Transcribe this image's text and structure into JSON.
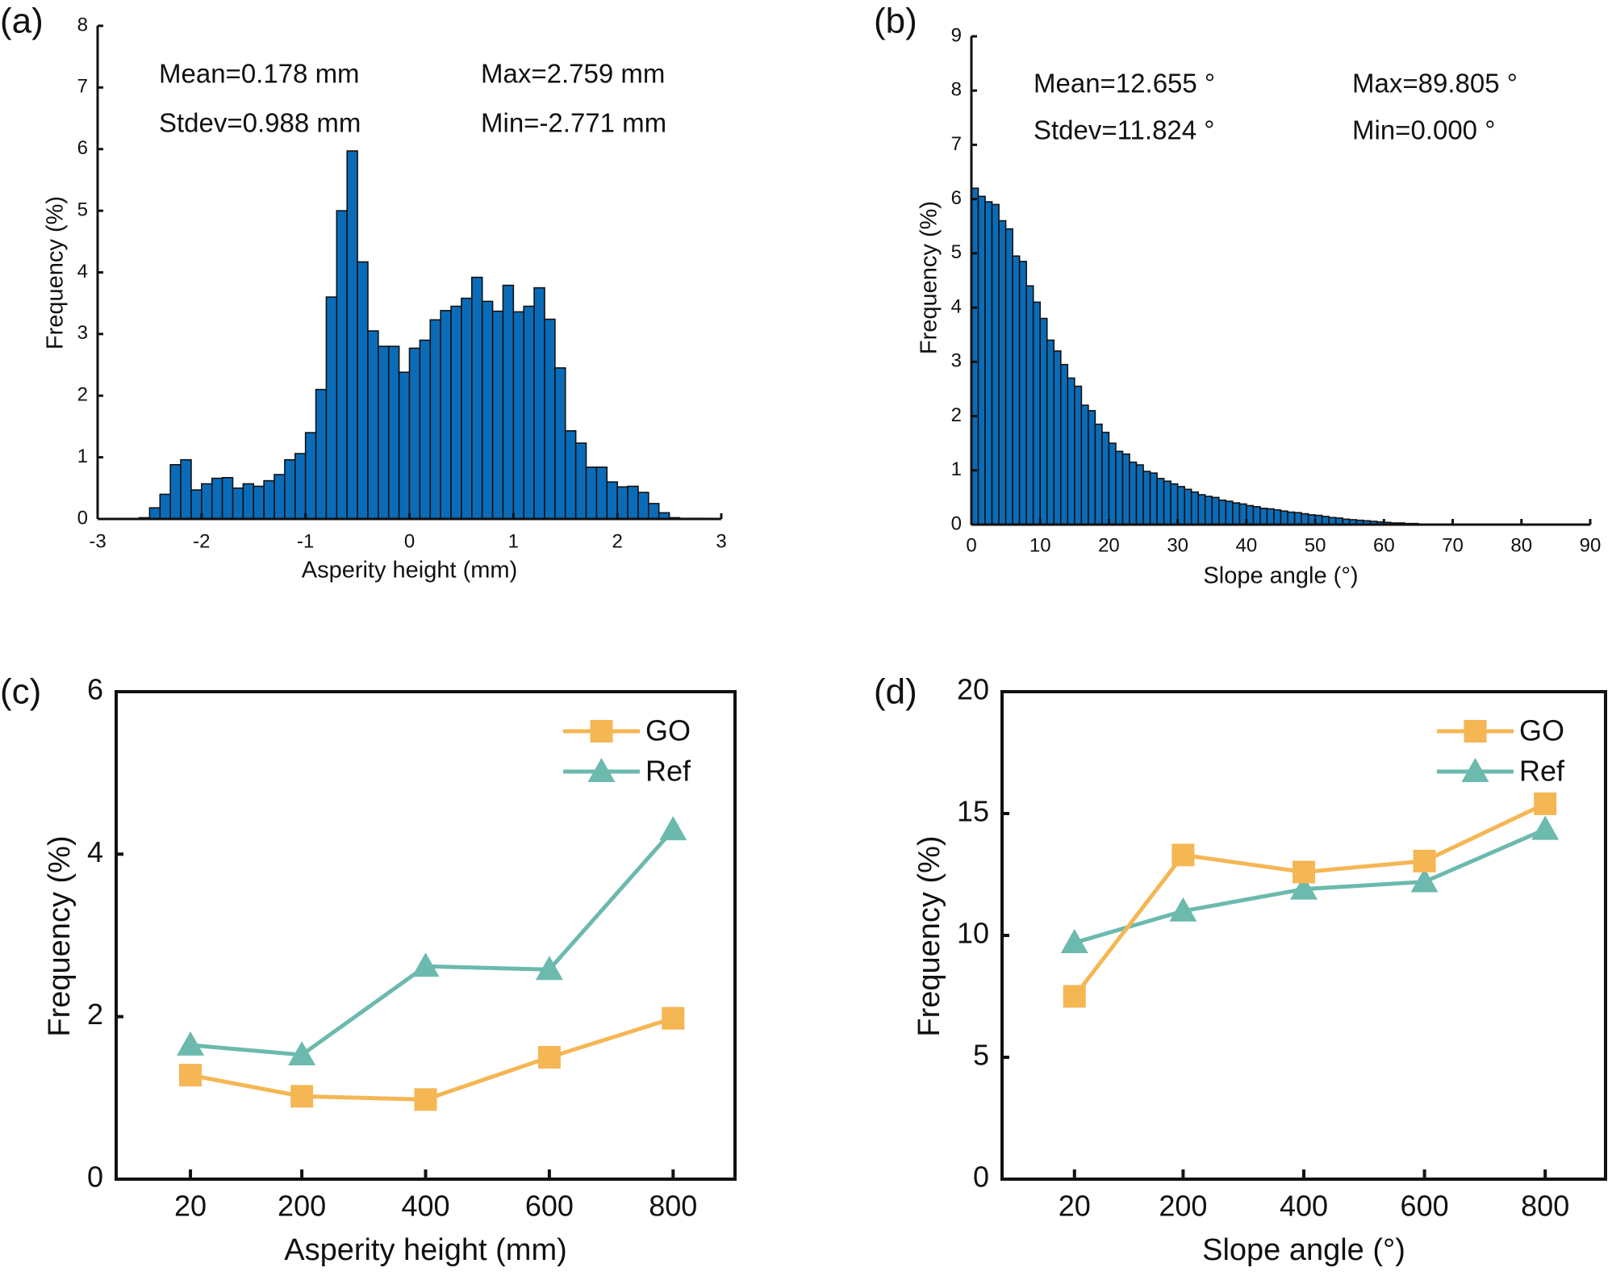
{
  "colors": {
    "bar": "#0a6cb8",
    "go": "#f5b654",
    "ref": "#6cb9ae",
    "axis": "#111111"
  },
  "chart_data": [
    {
      "panel": "(a)",
      "type": "bar",
      "subtype": "histogram",
      "xlabel": "Asperity height (mm)",
      "ylabel": "Frequency (%)",
      "xlim": [
        -3,
        3
      ],
      "ylim": [
        0,
        8
      ],
      "xticks": [
        "-3",
        "-2",
        "-1",
        "0",
        "1",
        "2",
        "3"
      ],
      "yticks": [
        "0",
        "1",
        "2",
        "3",
        "4",
        "5",
        "6",
        "7",
        "8"
      ],
      "bin_start_center": -2.55,
      "bin_width": 0.1,
      "values": [
        0.02,
        0.18,
        0.4,
        0.88,
        0.96,
        0.47,
        0.57,
        0.66,
        0.67,
        0.5,
        0.57,
        0.53,
        0.62,
        0.72,
        0.96,
        1.06,
        1.4,
        2.1,
        3.6,
        5.0,
        5.97,
        4.17,
        3.05,
        2.8,
        2.8,
        2.38,
        2.77,
        2.9,
        3.23,
        3.38,
        3.45,
        3.58,
        3.92,
        3.53,
        3.37,
        3.79,
        3.36,
        3.45,
        3.75,
        3.24,
        2.45,
        1.43,
        1.23,
        0.84,
        0.84,
        0.6,
        0.52,
        0.53,
        0.43,
        0.25,
        0.1,
        0.02,
        0.01,
        0.01,
        0.01
      ],
      "stats": {
        "mean": "Mean=0.178 mm",
        "max": "Max=2.759 mm",
        "stdev": "Stdev=0.988 mm",
        "min": "Min=-2.771 mm"
      }
    },
    {
      "panel": "(b)",
      "type": "bar",
      "subtype": "histogram",
      "xlabel": "Slope angle (°)",
      "ylabel": "Frequency (%)",
      "xlim": [
        0,
        90
      ],
      "ylim": [
        0,
        9
      ],
      "xticks": [
        "0",
        "10",
        "20",
        "30",
        "40",
        "50",
        "60",
        "70",
        "80",
        "90"
      ],
      "yticks": [
        "0",
        "1",
        "2",
        "3",
        "4",
        "5",
        "6",
        "7",
        "8",
        "9"
      ],
      "bin_start_center": 0.5,
      "bin_width": 1,
      "values": [
        6.2,
        6.05,
        5.95,
        5.9,
        5.6,
        5.45,
        4.95,
        4.85,
        4.4,
        4.1,
        3.8,
        3.4,
        3.2,
        2.95,
        2.7,
        2.55,
        2.2,
        2.1,
        1.85,
        1.7,
        1.5,
        1.35,
        1.3,
        1.15,
        1.1,
        0.98,
        0.95,
        0.85,
        0.8,
        0.75,
        0.7,
        0.65,
        0.6,
        0.55,
        0.52,
        0.5,
        0.45,
        0.43,
        0.4,
        0.38,
        0.35,
        0.33,
        0.3,
        0.29,
        0.27,
        0.25,
        0.23,
        0.22,
        0.2,
        0.18,
        0.17,
        0.15,
        0.13,
        0.12,
        0.1,
        0.09,
        0.08,
        0.07,
        0.06,
        0.05,
        0.04,
        0.03,
        0.03,
        0.02,
        0.02,
        0.01,
        0.01,
        0.01,
        0.01,
        0.01,
        0.01,
        0,
        0,
        0,
        0,
        0,
        0,
        0,
        0,
        0,
        0,
        0,
        0,
        0,
        0,
        0,
        0,
        0,
        0,
        0
      ],
      "stats": {
        "mean": "Mean=12.655 °",
        "max": "Max=89.805 °",
        "stdev": "Stdev=11.824 °",
        "min": "Min=0.000 °"
      }
    },
    {
      "panel": "(c)",
      "type": "line",
      "xlabel": "Asperity height (mm)",
      "ylabel": "Frequency (%)",
      "xlim": [
        -100,
        900
      ],
      "ylim": [
        0,
        6
      ],
      "x": [
        20,
        200,
        400,
        600,
        800
      ],
      "xticks": [
        "20",
        "200",
        "400",
        "600",
        "800"
      ],
      "yticks": [
        "0",
        "2",
        "4",
        "6"
      ],
      "legend_position": "top-right",
      "series": [
        {
          "name": "GO",
          "marker": "square",
          "values": [
            1.28,
            1.02,
            0.98,
            1.5,
            1.98
          ]
        },
        {
          "name": "Ref",
          "marker": "triangle",
          "values": [
            1.65,
            1.53,
            2.62,
            2.58,
            4.3
          ]
        }
      ]
    },
    {
      "panel": "(d)",
      "type": "line",
      "xlabel": "Slope angle (°)",
      "ylabel": "Frequency (%)",
      "xlim": [
        -100,
        900
      ],
      "ylim": [
        0,
        20
      ],
      "x": [
        20,
        200,
        400,
        600,
        800
      ],
      "xticks": [
        "20",
        "200",
        "400",
        "600",
        "800"
      ],
      "yticks": [
        "0",
        "5",
        "10",
        "15",
        "20"
      ],
      "legend_position": "top-right",
      "series": [
        {
          "name": "GO",
          "marker": "square",
          "values": [
            7.5,
            13.3,
            12.6,
            13.05,
            15.4
          ]
        },
        {
          "name": "Ref",
          "marker": "triangle",
          "values": [
            9.7,
            11.0,
            11.9,
            12.2,
            14.35
          ]
        }
      ]
    }
  ]
}
